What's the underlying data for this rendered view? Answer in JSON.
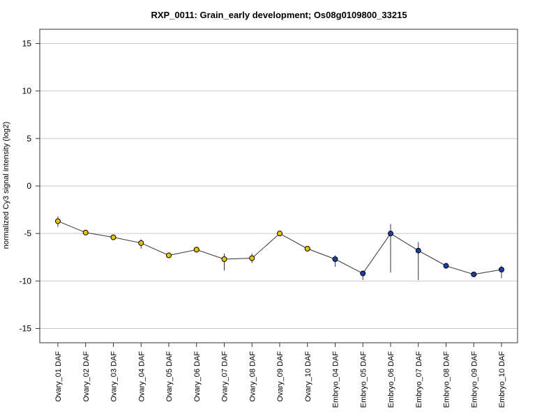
{
  "chart_data": {
    "type": "line",
    "title": "RXP_0011: Grain_early development; Os08g0109800_33215",
    "xlabel": "",
    "ylabel": "normalized Cy3 signal intensity (log2)",
    "ylim": [
      -16.5,
      16.5
    ],
    "yticks": [
      15,
      10,
      5,
      0,
      -5,
      -10,
      -15
    ],
    "grid": "horizontal",
    "categories": [
      "Ovary_01 DAF",
      "Ovary_02 DAF",
      "Ovary_03 DAF",
      "Ovary_04 DAF",
      "Ovary_05 DAF",
      "Ovary_06 DAF",
      "Ovary_07 DAF",
      "Ovary_08 DAF",
      "Ovary_09 DAF",
      "Ovary_10 DAF",
      "Embryo_04 DAF",
      "Embryo_05 DAF",
      "Embryo_06 DAF",
      "Embryo_07 DAF",
      "Embryo_08 DAF",
      "Embryo_09 DAF",
      "Embryo_10 DAF"
    ],
    "values": [
      -3.7,
      -4.9,
      -5.4,
      -6.0,
      -7.3,
      -6.7,
      -7.7,
      -7.6,
      -5.0,
      -6.6,
      -7.7,
      -9.2,
      -5.0,
      -6.8,
      -8.4,
      -9.3,
      -8.8
    ],
    "error_low": [
      -4.3,
      -5.0,
      -5.5,
      -6.6,
      -7.4,
      -6.8,
      -8.9,
      -8.1,
      -5.2,
      -6.7,
      -8.5,
      -9.9,
      -9.1,
      -9.9,
      -8.5,
      -9.4,
      -9.7
    ],
    "error_high": [
      -3.2,
      -4.8,
      -5.3,
      -5.6,
      -7.2,
      -6.6,
      -7.1,
      -7.1,
      -4.8,
      -6.5,
      -7.3,
      -8.9,
      -4.0,
      -5.9,
      -8.3,
      -9.2,
      -8.4
    ],
    "point_colors": [
      "#e8c400",
      "#e8c400",
      "#e8c400",
      "#e8c400",
      "#e8c400",
      "#e8c400",
      "#e8c400",
      "#e8c400",
      "#e8c400",
      "#e8c400",
      "#1a3fa8",
      "#1a3fa8",
      "#1a3fa8",
      "#1a3fa8",
      "#1a3fa8",
      "#1a3fa8",
      "#1a3fa8"
    ],
    "line_color": "#333333",
    "grid_color": "#c8c8c8"
  }
}
